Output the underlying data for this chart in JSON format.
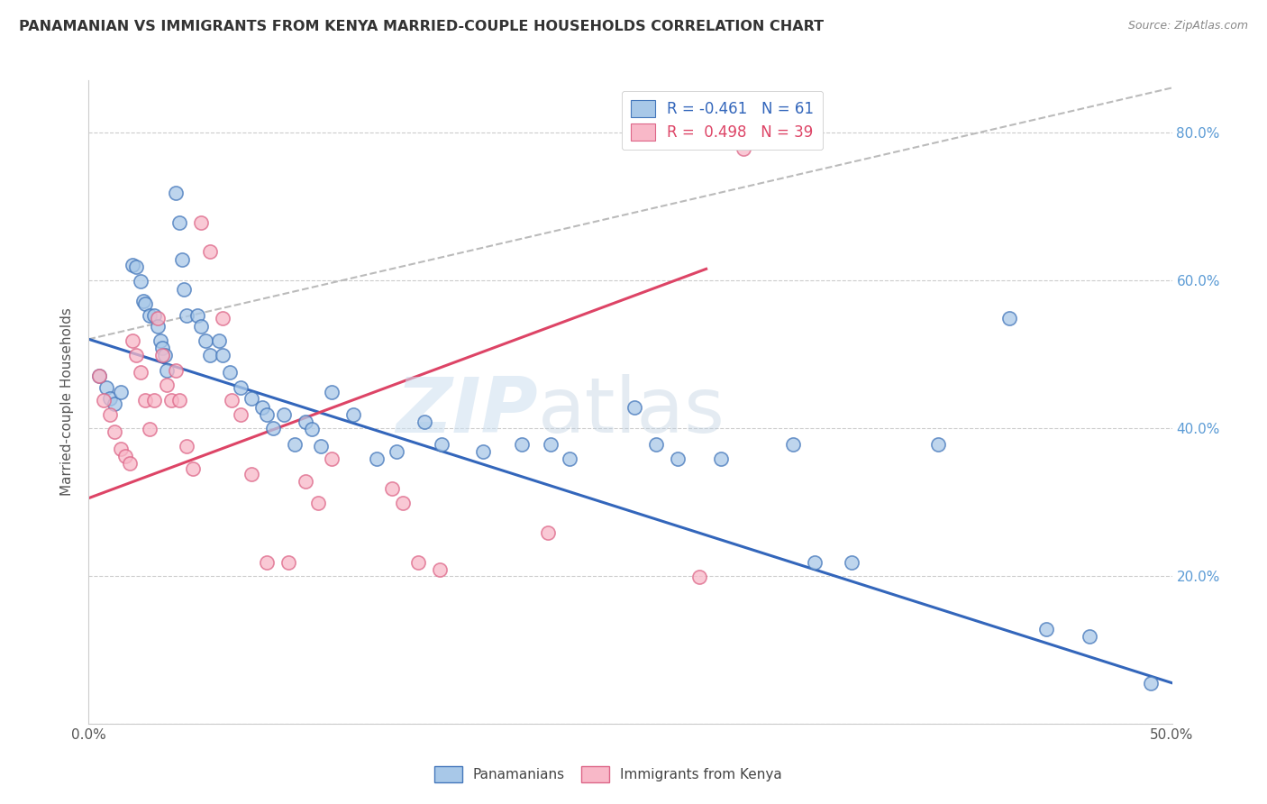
{
  "title": "PANAMANIAN VS IMMIGRANTS FROM KENYA MARRIED-COUPLE HOUSEHOLDS CORRELATION CHART",
  "source": "Source: ZipAtlas.com",
  "ylabel": "Married-couple Households",
  "xlim": [
    0.0,
    0.5
  ],
  "ylim": [
    0.0,
    0.87
  ],
  "yticks": [
    0.0,
    0.2,
    0.4,
    0.6,
    0.8
  ],
  "xticks": [
    0.0,
    0.05,
    0.1,
    0.15,
    0.2,
    0.25,
    0.3,
    0.35,
    0.4,
    0.45,
    0.5
  ],
  "blue_R": -0.461,
  "blue_N": 61,
  "pink_R": 0.498,
  "pink_N": 39,
  "blue_fill": "#a8c8e8",
  "blue_edge": "#4477bb",
  "pink_fill": "#f8b8c8",
  "pink_edge": "#dd6688",
  "blue_line": "#3366bb",
  "pink_line": "#dd4466",
  "dash_color": "#bbbbbb",
  "grid_color": "#cccccc",
  "blue_x": [
    0.005,
    0.008,
    0.01,
    0.012,
    0.015,
    0.02,
    0.022,
    0.024,
    0.025,
    0.026,
    0.028,
    0.03,
    0.032,
    0.033,
    0.034,
    0.035,
    0.036,
    0.04,
    0.042,
    0.043,
    0.044,
    0.045,
    0.05,
    0.052,
    0.054,
    0.056,
    0.06,
    0.062,
    0.065,
    0.07,
    0.075,
    0.08,
    0.082,
    0.085,
    0.09,
    0.095,
    0.1,
    0.103,
    0.107,
    0.112,
    0.122,
    0.133,
    0.142,
    0.155,
    0.163,
    0.182,
    0.2,
    0.213,
    0.222,
    0.252,
    0.262,
    0.272,
    0.292,
    0.325,
    0.335,
    0.352,
    0.392,
    0.425,
    0.442,
    0.462,
    0.49
  ],
  "blue_y": [
    0.47,
    0.455,
    0.44,
    0.432,
    0.448,
    0.62,
    0.618,
    0.598,
    0.572,
    0.568,
    0.552,
    0.552,
    0.538,
    0.518,
    0.508,
    0.498,
    0.478,
    0.718,
    0.678,
    0.628,
    0.588,
    0.552,
    0.552,
    0.538,
    0.518,
    0.498,
    0.518,
    0.498,
    0.475,
    0.455,
    0.44,
    0.428,
    0.418,
    0.4,
    0.418,
    0.378,
    0.408,
    0.398,
    0.375,
    0.448,
    0.418,
    0.358,
    0.368,
    0.408,
    0.378,
    0.368,
    0.378,
    0.378,
    0.358,
    0.428,
    0.378,
    0.358,
    0.358,
    0.378,
    0.218,
    0.218,
    0.378,
    0.548,
    0.128,
    0.118,
    0.055
  ],
  "pink_x": [
    0.005,
    0.007,
    0.01,
    0.012,
    0.015,
    0.017,
    0.019,
    0.02,
    0.022,
    0.024,
    0.026,
    0.028,
    0.03,
    0.032,
    0.034,
    0.036,
    0.038,
    0.04,
    0.042,
    0.045,
    0.048,
    0.052,
    0.056,
    0.062,
    0.066,
    0.07,
    0.075,
    0.082,
    0.092,
    0.1,
    0.106,
    0.112,
    0.14,
    0.145,
    0.152,
    0.162,
    0.212,
    0.282,
    0.302
  ],
  "pink_y": [
    0.47,
    0.438,
    0.418,
    0.395,
    0.372,
    0.362,
    0.352,
    0.518,
    0.498,
    0.475,
    0.438,
    0.398,
    0.438,
    0.548,
    0.498,
    0.458,
    0.438,
    0.478,
    0.438,
    0.375,
    0.345,
    0.678,
    0.638,
    0.548,
    0.438,
    0.418,
    0.338,
    0.218,
    0.218,
    0.328,
    0.298,
    0.358,
    0.318,
    0.298,
    0.218,
    0.208,
    0.258,
    0.198,
    0.778
  ],
  "blue_trend": [
    0.0,
    0.5,
    0.52,
    0.055
  ],
  "pink_trend": [
    0.0,
    0.285,
    0.305,
    0.615
  ],
  "dash_trend": [
    0.0,
    0.5,
    0.52,
    0.86
  ]
}
